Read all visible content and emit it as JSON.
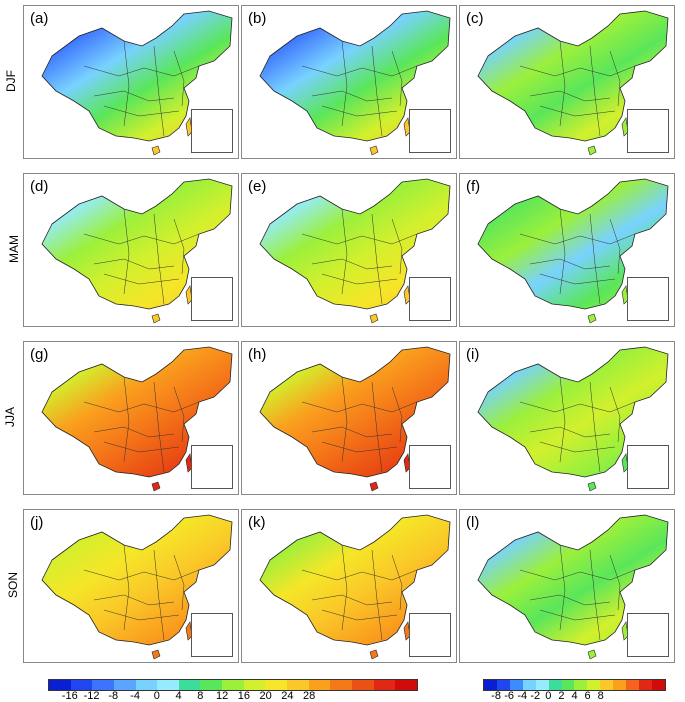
{
  "rows": [
    {
      "label": "DJF",
      "panels": [
        "(a)",
        "(b)",
        "(c)"
      ]
    },
    {
      "label": "MAM",
      "panels": [
        "(d)",
        "(e)",
        "(f)"
      ]
    },
    {
      "label": "JJA",
      "panels": [
        "(g)",
        "(h)",
        "(i)"
      ]
    },
    {
      "label": "SON",
      "panels": [
        "(j)",
        "(k)",
        "(l)"
      ]
    }
  ],
  "colorbar_left": {
    "ticks": [
      "-16",
      "-12",
      "-8",
      "-4",
      "0",
      "4",
      "8",
      "12",
      "16",
      "20",
      "24",
      "28"
    ],
    "colors": [
      "#0a1ed2",
      "#1f46f0",
      "#3c73ff",
      "#5aa5ff",
      "#78d2ff",
      "#96ebff",
      "#3cdc9b",
      "#5ae65a",
      "#9bf03c",
      "#d2f02d",
      "#f5e628",
      "#fac828",
      "#faa01e",
      "#f57819",
      "#eb5014",
      "#e12814",
      "#d20a0a"
    ]
  },
  "colorbar_right": {
    "ticks": [
      "-8",
      "-6",
      "-4",
      "-2",
      "0",
      "2",
      "4",
      "6",
      "8"
    ],
    "colors": [
      "#0a1ed2",
      "#1f46f0",
      "#3c8cff",
      "#78d2ff",
      "#96ebff",
      "#3cdc9b",
      "#5ae65a",
      "#9bf03c",
      "#d2f02d",
      "#fac828",
      "#faa01e",
      "#f5641e",
      "#e12814",
      "#d20a0a"
    ]
  }
}
